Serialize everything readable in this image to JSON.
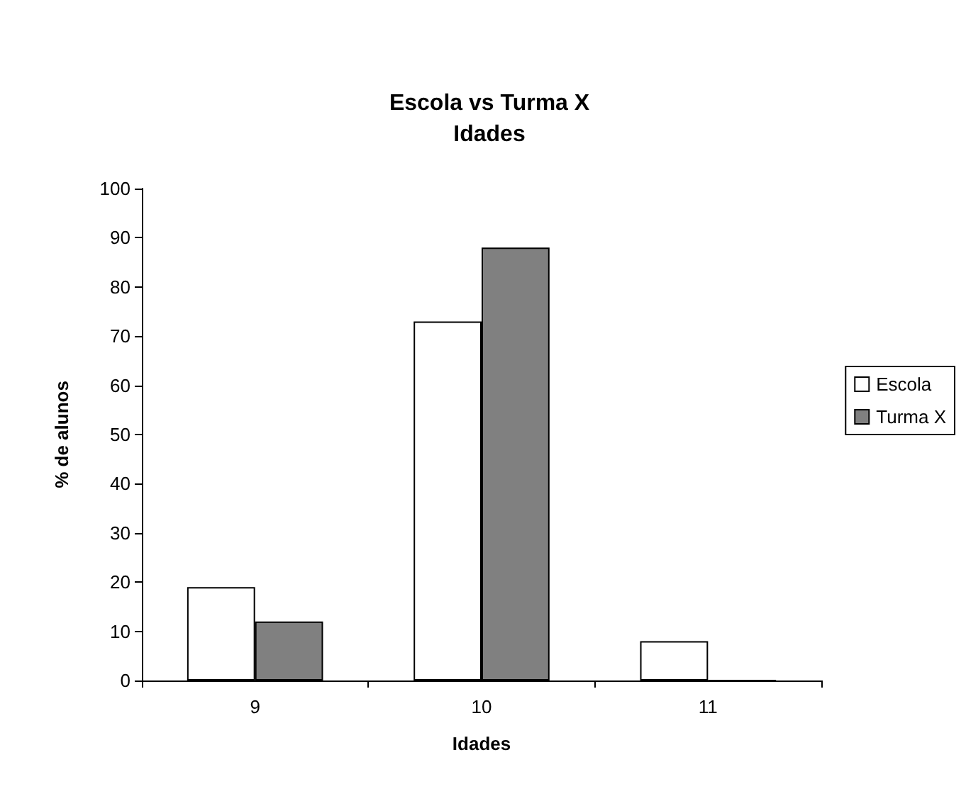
{
  "chart_data": {
    "type": "bar",
    "title": "Escola vs Turma X",
    "subtitle": "Idades",
    "xlabel": "Idades",
    "ylabel": "% de alunos",
    "categories": [
      "9",
      "10",
      "11"
    ],
    "series": [
      {
        "name": "Escola",
        "color": "#ffffff",
        "values": [
          19,
          73,
          8
        ]
      },
      {
        "name": "Turma X",
        "color": "#808080",
        "values": [
          12,
          88,
          0
        ]
      }
    ],
    "ylim": [
      0,
      100
    ],
    "yticks": [
      0,
      10,
      20,
      30,
      40,
      50,
      60,
      70,
      80,
      90,
      100
    ],
    "grid": false,
    "legend": "right"
  }
}
